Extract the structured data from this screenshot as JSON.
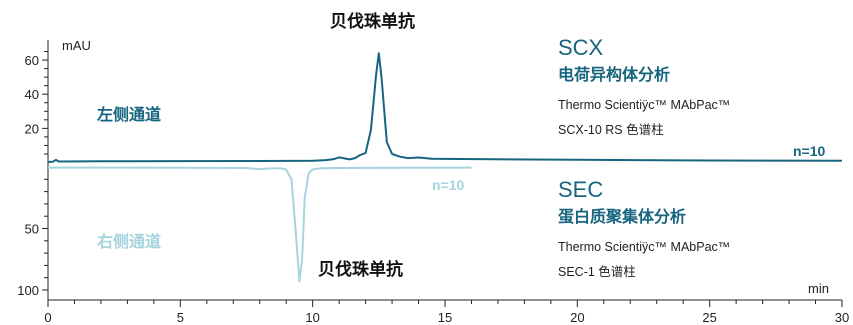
{
  "colors": {
    "scx": "#17657e",
    "sec": "#a6d3de",
    "axis": "#222222"
  },
  "chart_data": {
    "type": "line",
    "x_axis": {
      "label": "min",
      "range": [
        0,
        30
      ],
      "major_ticks": [
        0,
        5,
        10,
        15,
        20,
        25,
        30
      ],
      "minor_step": 1
    },
    "upper_axis": {
      "unit": "mAU",
      "range": [
        0,
        70
      ],
      "tick_labels": [
        20,
        40,
        60
      ],
      "minor_step": 5
    },
    "lower_axis": {
      "range": [
        0,
        100
      ],
      "tick_labels": [
        50,
        100
      ],
      "minor_step": 10
    },
    "grid": false,
    "series": [
      {
        "name": "n=10",
        "side_label": "左侧通道",
        "mode_label": "SCX",
        "method": "电荷异构体分析",
        "column_line1": "Thermo Scientiÿc™ MAbPac™",
        "column_line2": "SCX-10 RS 色谱柱",
        "peak_label": "贝伐珠单抗",
        "x": [
          0,
          0.2,
          0.3,
          0.4,
          2,
          5,
          8,
          10,
          10.5,
          10.8,
          11,
          11.2,
          11.4,
          11.6,
          11.8,
          12.0,
          12.2,
          12.4,
          12.5,
          12.6,
          12.8,
          13.0,
          13.3,
          13.6,
          14,
          14.5,
          15,
          20,
          25,
          30
        ],
        "y": [
          0.3,
          0.5,
          1.6,
          0.6,
          0.7,
          0.8,
          0.9,
          1.0,
          1.4,
          2.0,
          3.0,
          2.4,
          1.8,
          2.6,
          4.4,
          5.6,
          19.0,
          52.0,
          64.0,
          50.0,
          12.0,
          5.0,
          3.4,
          2.6,
          2.9,
          2.2,
          2.1,
          1.6,
          1.2,
          1.0
        ]
      },
      {
        "name": "n=10",
        "side_label": "右侧通道",
        "mode_label": "SEC",
        "method": "蛋白质聚集体分析",
        "column_line1": "Thermo Scientiÿc™ MAbPac™",
        "column_line2": "SEC-1 色谱柱",
        "peak_label": "贝伐珠单抗",
        "x": [
          0,
          5,
          7.5,
          8.0,
          8.3,
          8.8,
          9.0,
          9.2,
          9.35,
          9.5,
          9.6,
          9.7,
          9.85,
          10.0,
          10.3,
          11,
          14,
          16.0
        ],
        "y": [
          0.5,
          0.6,
          0.8,
          1.8,
          1.2,
          1.0,
          2.2,
          10.0,
          50.0,
          93.0,
          75.0,
          25.0,
          5.0,
          2.0,
          1.0,
          0.8,
          0.6,
          0.5
        ]
      }
    ]
  }
}
